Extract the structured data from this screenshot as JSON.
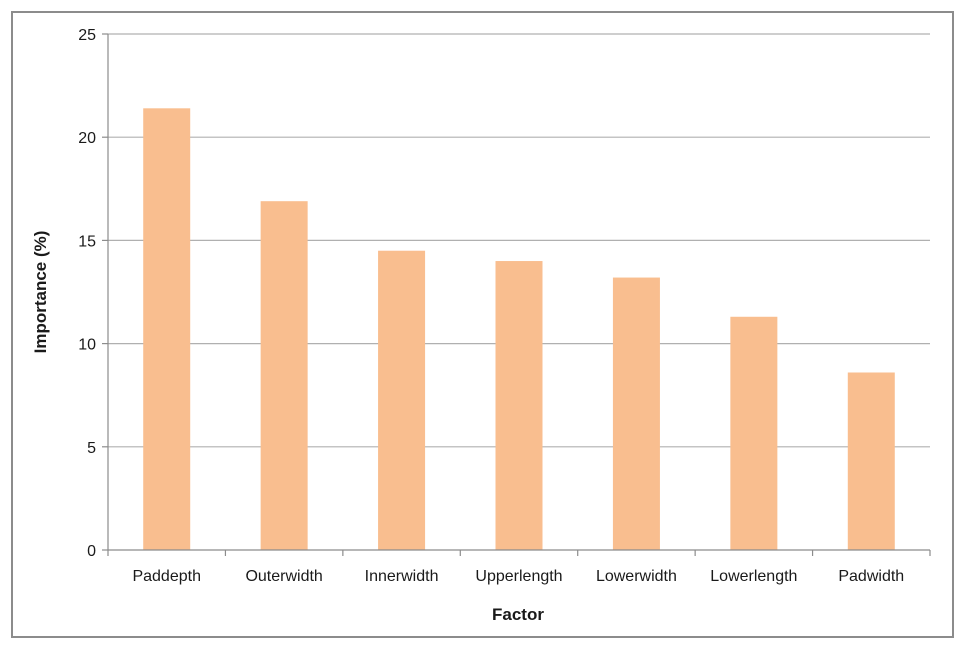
{
  "chart_data": {
    "type": "bar",
    "title": "",
    "xlabel": "Factor",
    "ylabel": "Importance (%)",
    "categories": [
      "Paddepth",
      "Outerwidth",
      "Innerwidth",
      "Upperlength",
      "Lowerwidth",
      "Lowerlength",
      "Padwidth"
    ],
    "values": [
      21.4,
      16.9,
      14.5,
      14.0,
      13.2,
      11.3,
      8.6
    ],
    "ylim": [
      0,
      25
    ],
    "yticks": [
      0,
      5,
      10,
      15,
      20,
      25
    ],
    "grid": "horizontal",
    "legend": "none",
    "bar_color": "#F9BE8F",
    "grid_color": "#b0b0b0",
    "axis_color": "#8c8c8c"
  }
}
